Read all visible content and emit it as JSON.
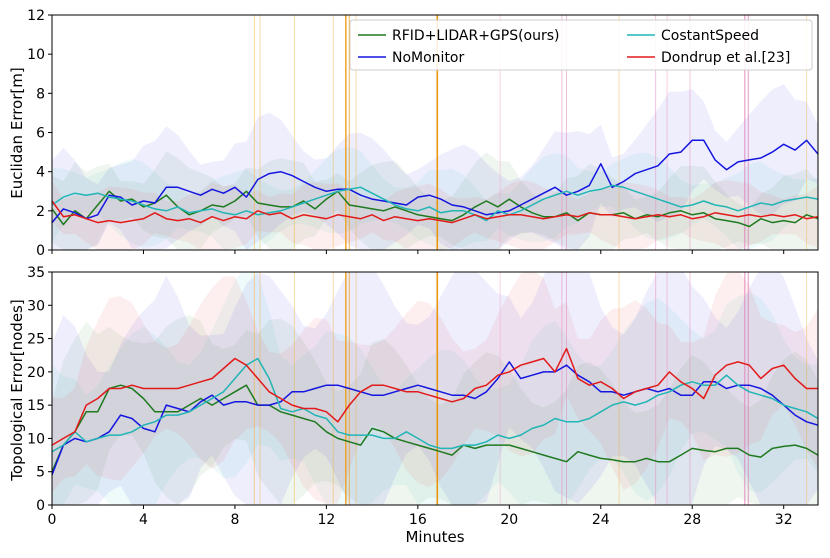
{
  "chart_data": [
    {
      "type": "line",
      "panel": "top",
      "ylabel": "Euclidan Error[m]",
      "xlabel": "",
      "ylim": [
        0,
        12
      ],
      "xlim": [
        0,
        33.5
      ],
      "xticks": [
        "0",
        "4",
        "8",
        "12",
        "16",
        "20",
        "24",
        "28",
        "32"
      ],
      "xtick_values": [
        0,
        4,
        8,
        12,
        16,
        20,
        24,
        28,
        32
      ],
      "yticks": [
        "0",
        "2",
        "4",
        "6",
        "8",
        "10",
        "12"
      ],
      "ytick_values": [
        0,
        2,
        4,
        6,
        8,
        10,
        12
      ],
      "legend": {
        "placement": "top-right",
        "columns": 2
      },
      "x": [
        0,
        0.5,
        1,
        1.5,
        2,
        2.5,
        3,
        3.5,
        4,
        4.5,
        5,
        5.5,
        6,
        6.5,
        7,
        7.5,
        8,
        8.5,
        9,
        9.5,
        10,
        10.5,
        11,
        11.5,
        12,
        12.5,
        13,
        13.5,
        14,
        14.5,
        15,
        15.5,
        16,
        16.5,
        17,
        17.5,
        18,
        18.5,
        19,
        19.5,
        20,
        20.5,
        21,
        21.5,
        22,
        22.5,
        23,
        23.5,
        24,
        24.5,
        25,
        25.5,
        26,
        26.5,
        27,
        27.5,
        28,
        28.5,
        29,
        29.5,
        30,
        30.5,
        31,
        31.5,
        32,
        32.5,
        33,
        33.5
      ],
      "series": [
        {
          "name": "RFID+LIDAR+GPS(ours)",
          "color": "#1f7a1f",
          "values": [
            2.1,
            1.3,
            2.0,
            1.6,
            2.3,
            3.0,
            2.5,
            2.6,
            2.2,
            2.4,
            2.8,
            2.2,
            1.8,
            2.0,
            2.3,
            2.2,
            2.5,
            3.0,
            2.4,
            2.3,
            2.2,
            2.2,
            2.5,
            2.1,
            2.6,
            3.0,
            2.3,
            2.2,
            2.1,
            2.0,
            2.2,
            2.0,
            1.8,
            1.7,
            1.6,
            1.5,
            1.8,
            2.2,
            2.5,
            2.2,
            2.6,
            2.2,
            1.9,
            1.7,
            1.7,
            1.9,
            1.5,
            1.9,
            1.8,
            1.8,
            1.9,
            1.6,
            1.8,
            1.7,
            1.9,
            2.0,
            1.8,
            1.9,
            1.6,
            1.5,
            1.4,
            1.2,
            1.6,
            1.4,
            1.5,
            1.4,
            1.8,
            1.6
          ]
        },
        {
          "name": "NoMonitor",
          "color": "#1515e0",
          "values": [
            1.4,
            2.1,
            1.9,
            1.6,
            1.8,
            2.8,
            2.7,
            2.3,
            2.5,
            2.4,
            3.2,
            3.2,
            3.0,
            2.8,
            3.1,
            2.9,
            3.2,
            2.7,
            3.6,
            3.9,
            4.0,
            3.8,
            3.5,
            3.2,
            3.0,
            3.1,
            3.1,
            2.8,
            2.6,
            2.5,
            2.4,
            2.3,
            2.7,
            2.8,
            2.6,
            2.3,
            2.2,
            2.0,
            1.8,
            1.9,
            2.0,
            2.3,
            2.6,
            2.9,
            3.2,
            2.8,
            3.0,
            3.3,
            4.4,
            3.2,
            3.5,
            3.9,
            4.1,
            4.3,
            4.9,
            5.0,
            5.6,
            5.6,
            4.6,
            4.1,
            4.5,
            4.6,
            4.7,
            5.0,
            5.4,
            5.1,
            5.6,
            4.9
          ]
        },
        {
          "name": "CostantSpeed",
          "color": "#22b5b5",
          "values": [
            2.3,
            2.7,
            2.9,
            2.8,
            2.9,
            2.7,
            2.6,
            2.5,
            2.3,
            2.1,
            2.0,
            2.2,
            1.9,
            2.0,
            2.1,
            1.9,
            1.8,
            2.0,
            1.8,
            1.9,
            2.0,
            2.2,
            2.4,
            2.6,
            2.8,
            3.0,
            3.1,
            3.2,
            2.9,
            2.6,
            2.3,
            2.1,
            2.0,
            2.2,
            1.9,
            2.0,
            2.0,
            1.8,
            1.5,
            2.0,
            1.8,
            2.0,
            2.3,
            2.6,
            2.8,
            3.0,
            2.8,
            3.0,
            3.1,
            3.3,
            3.2,
            3.0,
            2.8,
            2.6,
            2.4,
            2.2,
            2.3,
            2.5,
            2.3,
            2.2,
            2.0,
            2.2,
            2.4,
            2.3,
            2.5,
            2.6,
            2.7,
            2.6
          ]
        },
        {
          "name": "Dondrup et al.[23]",
          "color": "#e31a1a",
          "values": [
            2.5,
            1.7,
            1.8,
            1.6,
            1.4,
            1.5,
            1.4,
            1.5,
            1.6,
            1.9,
            1.6,
            1.5,
            1.6,
            1.4,
            1.7,
            1.5,
            1.7,
            1.6,
            2.0,
            1.8,
            1.9,
            1.6,
            1.8,
            1.7,
            1.6,
            1.8,
            1.7,
            1.6,
            1.8,
            1.5,
            1.7,
            1.6,
            1.5,
            1.6,
            1.5,
            1.4,
            1.6,
            1.8,
            1.6,
            1.7,
            1.8,
            1.8,
            1.7,
            1.6,
            1.7,
            1.8,
            1.7,
            1.9,
            1.8,
            1.8,
            1.7,
            1.6,
            1.7,
            1.8,
            1.7,
            1.8,
            1.6,
            1.7,
            1.9,
            1.8,
            1.7,
            1.8,
            1.7,
            1.8,
            1.7,
            1.8,
            1.6,
            1.7
          ]
        }
      ]
    },
    {
      "type": "line",
      "panel": "bottom",
      "ylabel": "Topological Error[nodes]",
      "xlabel": "Minutes",
      "ylim": [
        0,
        35
      ],
      "xlim": [
        0,
        33.5
      ],
      "xticks": [
        "0",
        "4",
        "8",
        "12",
        "16",
        "20",
        "24",
        "28",
        "32"
      ],
      "xtick_values": [
        0,
        4,
        8,
        12,
        16,
        20,
        24,
        28,
        32
      ],
      "yticks": [
        "0",
        "5",
        "10",
        "15",
        "20",
        "25",
        "30",
        "35"
      ],
      "ytick_values": [
        0,
        5,
        10,
        15,
        20,
        25,
        30,
        35
      ],
      "x": [
        0,
        0.5,
        1,
        1.5,
        2,
        2.5,
        3,
        3.5,
        4,
        4.5,
        5,
        5.5,
        6,
        6.5,
        7,
        7.5,
        8,
        8.5,
        9,
        9.5,
        10,
        10.5,
        11,
        11.5,
        12,
        12.5,
        13,
        13.5,
        14,
        14.5,
        15,
        15.5,
        16,
        16.5,
        17,
        17.5,
        18,
        18.5,
        19,
        19.5,
        20,
        20.5,
        21,
        21.5,
        22,
        22.5,
        23,
        23.5,
        24,
        24.5,
        25,
        25.5,
        26,
        26.5,
        27,
        27.5,
        28,
        28.5,
        29,
        29.5,
        30,
        30.5,
        31,
        31.5,
        32,
        32.5,
        33,
        33.5
      ],
      "series": [
        {
          "name": "RFID+LIDAR+GPS(ours)",
          "color": "#1f7a1f",
          "values": [
            5,
            9,
            11,
            14,
            14,
            17.5,
            18,
            17.5,
            16,
            14,
            14,
            14,
            15,
            16,
            15,
            16,
            17,
            18,
            15,
            15,
            14,
            13.5,
            13,
            12.5,
            11,
            10,
            9.5,
            9,
            11.5,
            11,
            10,
            9.5,
            9,
            8.5,
            8,
            7.5,
            9,
            8.5,
            9,
            9,
            9,
            8.5,
            8,
            7.5,
            7,
            6.5,
            8,
            7.5,
            7,
            6.8,
            6.5,
            6.5,
            7,
            6.5,
            6.5,
            7.5,
            8.5,
            8.2,
            8,
            8.5,
            8.5,
            7.5,
            7.2,
            8.5,
            8.8,
            9,
            8.5,
            7.5
          ]
        },
        {
          "name": "NoMonitor",
          "color": "#1515e0",
          "values": [
            4.5,
            9,
            10,
            9.5,
            10,
            11,
            13.5,
            13,
            11.5,
            11,
            15,
            14.5,
            14,
            15.5,
            16.5,
            15,
            15.5,
            15.5,
            15,
            15,
            15.5,
            17,
            17,
            17.5,
            18,
            18,
            17.5,
            17,
            16.5,
            16.5,
            17,
            17.5,
            18,
            17.5,
            17,
            16.5,
            16.5,
            16,
            17,
            19,
            21.5,
            19,
            19.5,
            20,
            20,
            21,
            19.5,
            18.5,
            17,
            17,
            16.5,
            17,
            17.5,
            17,
            17.5,
            16.5,
            16.5,
            18.5,
            18.5,
            17.5,
            18,
            18,
            17.5,
            16.5,
            15,
            13.5,
            12.5,
            12
          ]
        },
        {
          "name": "CostantSpeed",
          "color": "#22b5b5",
          "values": [
            8,
            9,
            11,
            9.5,
            10,
            10.5,
            10.5,
            11,
            12,
            12.5,
            13.5,
            13.5,
            14,
            15,
            16,
            17,
            19,
            21,
            22,
            19,
            14.5,
            14,
            14.5,
            13.5,
            13,
            11,
            10.5,
            10.5,
            10.5,
            10,
            10,
            11,
            10,
            9,
            8.5,
            8.5,
            9,
            9,
            9.5,
            10.5,
            10,
            10.5,
            11.5,
            12,
            13,
            12.5,
            12.5,
            13,
            14,
            15,
            15.5,
            15,
            15.5,
            16.5,
            17,
            18,
            18.5,
            18,
            18,
            19.5,
            18,
            17,
            16.5,
            16,
            15,
            14.5,
            14,
            13
          ]
        },
        {
          "name": "Dondrup et al.[23]",
          "color": "#e31a1a",
          "values": [
            9,
            10,
            11,
            15,
            16,
            17.5,
            17.5,
            18,
            17.5,
            17.5,
            17.5,
            17.5,
            18,
            18.5,
            19,
            20.5,
            22,
            21,
            19,
            17,
            16,
            15,
            14.5,
            14.5,
            14,
            12.5,
            15,
            17,
            18,
            18,
            17.5,
            17,
            17,
            16.5,
            16,
            15.5,
            16,
            17.5,
            18,
            19.5,
            20,
            21,
            21.5,
            22,
            20,
            23.5,
            19,
            18,
            18.5,
            17.5,
            16,
            17,
            17.5,
            18,
            20,
            18.5,
            17.5,
            16,
            19.5,
            21,
            21.5,
            21,
            19,
            20.5,
            21,
            19,
            17.5,
            17.5
          ]
        }
      ]
    }
  ]
}
